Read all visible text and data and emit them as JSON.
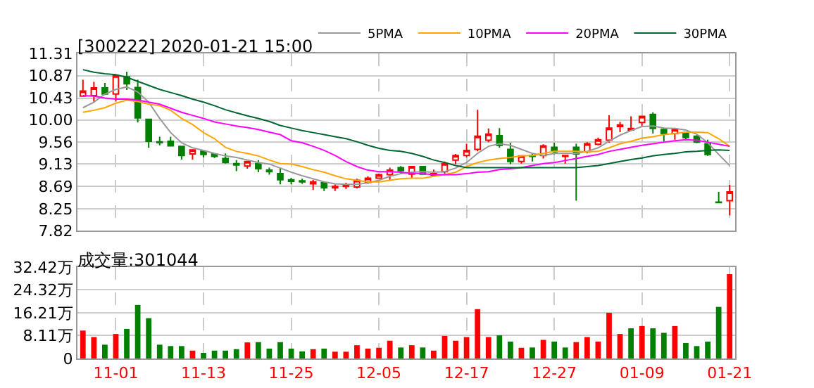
{
  "chart_data": [
    {
      "type": "candlestick",
      "title": "[300222] 2020-01-21 15:00",
      "categories": [
        null,
        null,
        null,
        null,
        null,
        null,
        null,
        null,
        null,
        null,
        null,
        null,
        null,
        null,
        null,
        null,
        null,
        null,
        null,
        null,
        null,
        null,
        null,
        null,
        null,
        null,
        null,
        null,
        null,
        null,
        null,
        null,
        null,
        null,
        null,
        null,
        null,
        null,
        null,
        null,
        null,
        null,
        null,
        null,
        null,
        null,
        null,
        null,
        null,
        null,
        null,
        null,
        null,
        null,
        null,
        null,
        null,
        null,
        null,
        null
      ],
      "ohlc": [
        [
          10.47,
          10.79,
          10.47,
          10.57
        ],
        [
          10.48,
          10.75,
          10.35,
          10.63
        ],
        [
          10.63,
          10.73,
          10.49,
          10.51
        ],
        [
          10.51,
          10.87,
          10.36,
          10.87
        ],
        [
          10.85,
          10.95,
          10.59,
          10.71
        ],
        [
          10.64,
          10.79,
          9.95,
          10.04
        ],
        [
          10.01,
          10.01,
          9.45,
          9.58
        ],
        [
          9.57,
          9.67,
          9.5,
          9.55
        ],
        [
          9.58,
          9.67,
          9.49,
          9.49
        ],
        [
          9.48,
          9.48,
          9.22,
          9.3
        ],
        [
          9.33,
          9.41,
          9.22,
          9.41
        ],
        [
          9.38,
          9.4,
          9.26,
          9.32
        ],
        [
          9.33,
          9.34,
          9.25,
          9.28
        ],
        [
          9.24,
          9.34,
          9.14,
          9.16
        ],
        [
          9.14,
          9.21,
          8.99,
          9.11
        ],
        [
          9.09,
          9.18,
          9.04,
          9.18
        ],
        [
          9.14,
          9.21,
          8.97,
          9.04
        ],
        [
          9.01,
          9.06,
          8.92,
          8.98
        ],
        [
          8.94,
          9.06,
          8.73,
          8.82
        ],
        [
          8.82,
          8.86,
          8.73,
          8.79
        ],
        [
          8.8,
          8.84,
          8.74,
          8.78
        ],
        [
          8.74,
          8.82,
          8.62,
          8.78
        ],
        [
          8.76,
          8.78,
          8.6,
          8.66
        ],
        [
          8.66,
          8.73,
          8.6,
          8.69
        ],
        [
          8.69,
          8.76,
          8.64,
          8.71
        ],
        [
          8.68,
          8.84,
          8.65,
          8.81
        ],
        [
          8.77,
          8.89,
          8.74,
          8.85
        ],
        [
          8.85,
          8.94,
          8.84,
          8.92
        ],
        [
          8.92,
          9.06,
          8.82,
          9.01
        ],
        [
          9.06,
          9.09,
          8.94,
          9.0
        ],
        [
          8.93,
          9.08,
          8.86,
          9.08
        ],
        [
          9.08,
          9.08,
          8.93,
          8.93
        ],
        [
          8.91,
          9.02,
          8.89,
          8.94
        ],
        [
          8.98,
          9.18,
          8.94,
          9.14
        ],
        [
          9.21,
          9.33,
          9.13,
          9.3
        ],
        [
          9.3,
          9.53,
          9.26,
          9.4
        ],
        [
          9.42,
          10.2,
          9.38,
          9.68
        ],
        [
          9.6,
          9.83,
          9.56,
          9.72
        ],
        [
          9.69,
          9.84,
          9.45,
          9.5
        ],
        [
          9.42,
          9.55,
          9.13,
          9.18
        ],
        [
          9.18,
          9.3,
          9.14,
          9.29
        ],
        [
          9.3,
          9.34,
          9.18,
          9.28
        ],
        [
          9.3,
          9.52,
          9.24,
          9.49
        ],
        [
          9.46,
          9.55,
          9.32,
          9.37
        ],
        [
          9.28,
          9.3,
          9.14,
          9.3
        ],
        [
          9.46,
          9.53,
          8.41,
          9.33
        ],
        [
          9.37,
          9.56,
          9.34,
          9.53
        ],
        [
          9.52,
          9.65,
          9.5,
          9.61
        ],
        [
          9.6,
          10.09,
          9.55,
          9.84
        ],
        [
          9.87,
          9.96,
          9.76,
          9.9
        ],
        [
          9.8,
          10.07,
          9.79,
          9.83
        ],
        [
          9.95,
          10.08,
          9.87,
          10.07
        ],
        [
          10.11,
          10.15,
          9.73,
          9.83
        ],
        [
          9.81,
          9.83,
          9.58,
          9.73
        ],
        [
          9.73,
          9.83,
          9.61,
          9.81
        ],
        [
          9.75,
          9.76,
          9.6,
          9.65
        ],
        [
          9.68,
          9.7,
          9.54,
          9.56
        ],
        [
          9.53,
          9.61,
          9.29,
          9.32
        ],
        [
          8.38,
          8.58,
          8.37,
          8.37
        ],
        [
          8.41,
          8.72,
          8.12,
          8.58
        ]
      ],
      "colors": [
        "#ff0000",
        "#ff0000",
        "#008000",
        "#ff0000",
        "#008000",
        "#008000",
        "#008000",
        "#008000",
        "#008000",
        "#008000",
        "#ff0000",
        "#008000",
        "#008000",
        "#008000",
        "#008000",
        "#ff0000",
        "#008000",
        "#008000",
        "#008000",
        "#008000",
        "#008000",
        "#ff0000",
        "#008000",
        "#ff0000",
        "#ff0000",
        "#ff0000",
        "#ff0000",
        "#ff0000",
        "#ff0000",
        "#008000",
        "#ff0000",
        "#008000",
        "#ff0000",
        "#ff0000",
        "#ff0000",
        "#ff0000",
        "#ff0000",
        "#ff0000",
        "#008000",
        "#008000",
        "#ff0000",
        "#008000",
        "#ff0000",
        "#008000",
        "#ff0000",
        "#008000",
        "#ff0000",
        "#ff0000",
        "#ff0000",
        "#ff0000",
        "#ff0000",
        "#ff0000",
        "#008000",
        "#008000",
        "#ff0000",
        "#008000",
        "#008000",
        "#008000",
        "#008000",
        "#ff0000"
      ],
      "series": [
        {
          "type": "line",
          "name": "5PMA",
          "color": "#999999",
          "values": [
            10.24,
            10.35,
            10.51,
            10.6,
            10.65,
            10.55,
            10.35,
            10.03,
            9.75,
            9.55,
            9.45,
            9.4,
            9.34,
            9.29,
            9.26,
            9.21,
            9.16,
            9.13,
            9.05,
            8.97,
            8.9,
            8.84,
            8.78,
            8.74,
            8.73,
            8.73,
            8.76,
            8.81,
            8.89,
            8.94,
            8.97,
            8.98,
            8.97,
            8.98,
            9.05,
            9.16,
            9.34,
            9.48,
            9.53,
            9.5,
            9.42,
            9.34,
            9.3,
            9.34,
            9.34,
            9.34,
            9.38,
            9.45,
            9.58,
            9.7,
            9.79,
            9.87,
            9.88,
            9.84,
            9.83,
            9.8,
            9.72,
            9.55,
            9.32,
            9.1
          ]
        },
        {
          "type": "line",
          "name": "10PMA",
          "color": "#ffa500",
          "values": [
            10.15,
            10.19,
            10.24,
            10.33,
            10.39,
            10.36,
            10.31,
            10.28,
            10.19,
            10.03,
            9.91,
            9.75,
            9.63,
            9.46,
            9.38,
            9.34,
            9.29,
            9.21,
            9.14,
            9.13,
            9.08,
            9.02,
            8.97,
            8.9,
            8.84,
            8.81,
            8.78,
            8.78,
            8.81,
            8.84,
            8.85,
            8.85,
            8.89,
            8.92,
            8.97,
            9.08,
            9.16,
            9.21,
            9.24,
            9.26,
            9.29,
            9.3,
            9.34,
            9.38,
            9.38,
            9.38,
            9.37,
            9.38,
            9.45,
            9.53,
            9.58,
            9.64,
            9.67,
            9.71,
            9.73,
            9.76,
            9.76,
            9.75,
            9.63,
            9.48
          ]
        },
        {
          "type": "line",
          "name": "20PMA",
          "color": "#ff00ff",
          "values": [
            10.48,
            10.47,
            10.43,
            10.41,
            10.41,
            10.39,
            10.35,
            10.31,
            10.23,
            10.15,
            10.09,
            10.03,
            9.96,
            9.92,
            9.88,
            9.85,
            9.81,
            9.76,
            9.71,
            9.59,
            9.55,
            9.48,
            9.4,
            9.3,
            9.18,
            9.08,
            9.01,
            8.98,
            8.98,
            8.97,
            8.95,
            8.94,
            8.92,
            8.92,
            8.92,
            8.94,
            8.97,
            8.98,
            9.02,
            9.04,
            9.06,
            9.1,
            9.14,
            9.16,
            9.2,
            9.24,
            9.28,
            9.32,
            9.38,
            9.42,
            9.46,
            9.5,
            9.53,
            9.56,
            9.59,
            9.61,
            9.6,
            9.56,
            9.52,
            9.48
          ]
        },
        {
          "type": "line",
          "name": "30PMA",
          "color": "#006633",
          "values": [
            10.99,
            10.94,
            10.91,
            10.89,
            10.84,
            10.76,
            10.68,
            10.6,
            10.54,
            10.48,
            10.41,
            10.35,
            10.28,
            10.2,
            10.14,
            10.08,
            10.03,
            9.97,
            9.89,
            9.84,
            9.79,
            9.75,
            9.71,
            9.67,
            9.63,
            9.57,
            9.5,
            9.44,
            9.4,
            9.38,
            9.34,
            9.28,
            9.21,
            9.16,
            9.1,
            9.06,
            9.06,
            9.06,
            9.06,
            9.06,
            9.06,
            9.06,
            9.06,
            9.06,
            9.06,
            9.06,
            9.08,
            9.1,
            9.14,
            9.18,
            9.22,
            9.25,
            9.29,
            9.32,
            9.34,
            9.37,
            9.38,
            9.4,
            9.41,
            9.4
          ]
        }
      ],
      "ylim": [
        7.82,
        11.31
      ],
      "yticks": [
        7.82,
        8.25,
        8.69,
        9.13,
        9.56,
        {
          "value": 10,
          "label": "10.00"
        },
        10.43,
        10.87,
        11.31
      ],
      "grid": true,
      "legend": "top right",
      "tick_labels": "y"
    },
    {
      "type": "bar",
      "title": "成交量:301044",
      "categories": [
        null,
        null,
        null,
        "11-01",
        null,
        null,
        null,
        null,
        null,
        null,
        null,
        "11-13",
        null,
        null,
        null,
        null,
        null,
        null,
        null,
        "11-25",
        null,
        null,
        null,
        null,
        null,
        null,
        null,
        "12-05",
        null,
        null,
        null,
        null,
        null,
        null,
        null,
        "12-17",
        null,
        null,
        null,
        null,
        null,
        null,
        null,
        "12-27",
        null,
        null,
        null,
        null,
        null,
        null,
        null,
        "01-09",
        null,
        null,
        null,
        null,
        null,
        null,
        null,
        "01-21"
      ],
      "values": [
        9.9,
        7.6,
        4.9,
        8.7,
        10.5,
        19.0,
        14.3,
        4.9,
        4.4,
        4.4,
        2.8,
        2.0,
        2.8,
        2.8,
        3.3,
        5.7,
        5.8,
        3.5,
        5.8,
        3.5,
        2.5,
        3.3,
        3.5,
        2.4,
        2.4,
        4.7,
        3.5,
        3.8,
        6.3,
        3.9,
        4.7,
        3.9,
        2.8,
        8.0,
        6.3,
        7.6,
        17.5,
        7.6,
        8.2,
        6.0,
        3.8,
        3.9,
        6.6,
        6.0,
        3.9,
        5.8,
        7.6,
        6.0,
        16.2,
        8.7,
        10.7,
        11.5,
        10.7,
        9.1,
        11.5,
        5.5,
        4.4,
        6.0,
        18.3,
        29.9
      ],
      "colors": [
        "#ff0000",
        "#ff0000",
        "#008000",
        "#ff0000",
        "#008000",
        "#008000",
        "#008000",
        "#008000",
        "#008000",
        "#008000",
        "#ff0000",
        "#008000",
        "#008000",
        "#008000",
        "#008000",
        "#ff0000",
        "#008000",
        "#008000",
        "#008000",
        "#008000",
        "#008000",
        "#ff0000",
        "#008000",
        "#ff0000",
        "#ff0000",
        "#ff0000",
        "#ff0000",
        "#ff0000",
        "#ff0000",
        "#008000",
        "#ff0000",
        "#008000",
        "#ff0000",
        "#ff0000",
        "#ff0000",
        "#ff0000",
        "#ff0000",
        "#ff0000",
        "#008000",
        "#008000",
        "#ff0000",
        "#008000",
        "#ff0000",
        "#008000",
        "#008000",
        "#ff0000",
        "#ff0000",
        "#ff0000",
        "#ff0000",
        "#ff0000",
        "#008000",
        "#ff0000",
        "#008000",
        "#008000",
        "#ff0000",
        "#008000",
        "#008000",
        "#008000",
        "#008000",
        "#ff0000"
      ],
      "ylim": [
        0,
        32.42
      ],
      "yticks": [
        0,
        {
          "value": 8.11,
          "label": "8.11万"
        },
        {
          "value": 16.21,
          "label": "16.21万"
        },
        {
          "value": 24.32,
          "label": "24.32万"
        },
        {
          "value": 32.42,
          "label": "32.42万"
        }
      ],
      "grid": true
    }
  ]
}
